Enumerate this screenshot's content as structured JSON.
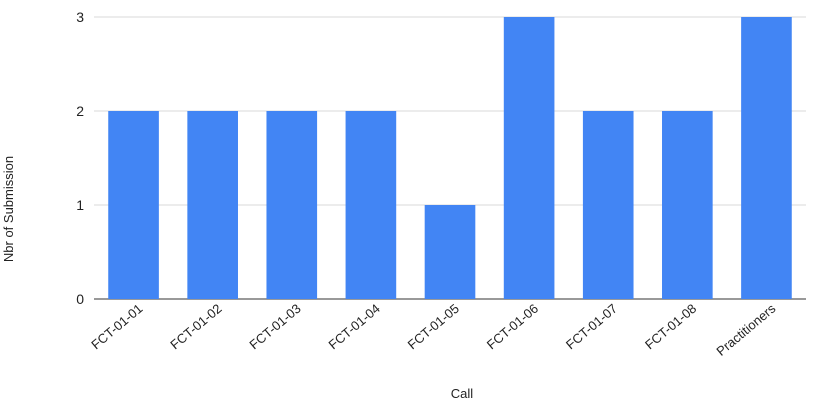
{
  "chart_data": {
    "type": "bar",
    "categories": [
      "FCT-01-01",
      "FCT-01-02",
      "FCT-01-03",
      "FCT-01-04",
      "FCT-01-05",
      "FCT-01-06",
      "FCT-01-07",
      "FCT-01-08",
      "Practitioners"
    ],
    "values": [
      2,
      2,
      2,
      2,
      1,
      3,
      2,
      2,
      3
    ],
    "xlabel": "Call",
    "ylabel": "Nbr of Submission",
    "ylim": [
      0,
      3
    ],
    "yticks": [
      0,
      1,
      2,
      3
    ],
    "grid": true,
    "bar_color": "#4285f4"
  }
}
